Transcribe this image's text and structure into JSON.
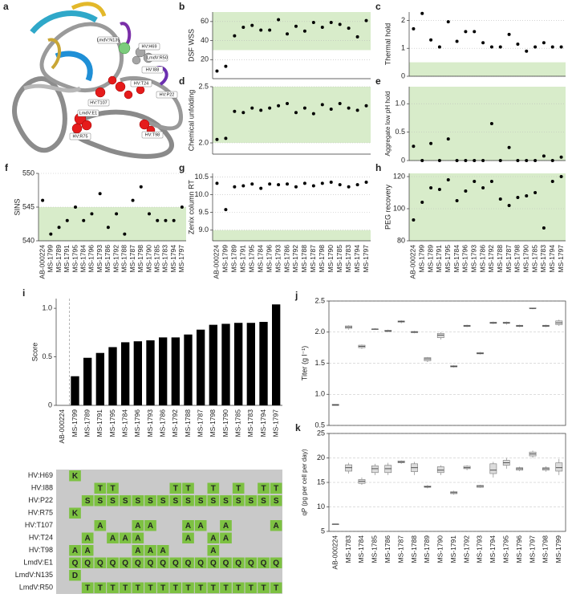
{
  "structure": {
    "panel": "a",
    "labels": [
      "LmdV:N135",
      "HV:H69",
      "LmdV:R50",
      "HV:I88",
      "HV:T107",
      "HV:T24",
      "HV:P22",
      "LmdV:E1",
      "HV:R75",
      "HV:T98"
    ]
  },
  "mutation_table": {
    "rows": [
      {
        "label": "HV:H69",
        "cells": [
          null,
          "K",
          null,
          null,
          null,
          null,
          null,
          null,
          null,
          null,
          null,
          null,
          null,
          null,
          null,
          null,
          null,
          null
        ]
      },
      {
        "label": "HV:I88",
        "cells": [
          null,
          null,
          null,
          "T",
          "T",
          null,
          null,
          null,
          null,
          "T",
          "T",
          null,
          "T",
          null,
          "T",
          null,
          "T",
          "T"
        ]
      },
      {
        "label": "HV:P22",
        "cells": [
          null,
          null,
          "S",
          "S",
          "S",
          "S",
          "S",
          "S",
          "S",
          "S",
          "S",
          "S",
          "S",
          "S",
          "S",
          "S",
          "S",
          "S"
        ]
      },
      {
        "label": "HV:R75",
        "cells": [
          null,
          "K",
          null,
          null,
          null,
          null,
          null,
          null,
          null,
          null,
          null,
          null,
          null,
          null,
          null,
          null,
          null,
          null
        ]
      },
      {
        "label": "HV:T107",
        "cells": [
          null,
          null,
          null,
          "A",
          null,
          null,
          "A",
          "A",
          null,
          null,
          "A",
          "A",
          null,
          "A",
          null,
          null,
          null,
          "A"
        ]
      },
      {
        "label": "HV:T24",
        "cells": [
          null,
          null,
          "A",
          null,
          "A",
          "A",
          "A",
          null,
          null,
          null,
          "A",
          null,
          "A",
          "A",
          null,
          null,
          null,
          null
        ]
      },
      {
        "label": "HV:T98",
        "cells": [
          null,
          "A",
          "A",
          null,
          null,
          null,
          "A",
          "A",
          "A",
          null,
          null,
          null,
          "A",
          null,
          null,
          null,
          null,
          null
        ]
      },
      {
        "label": "LmdV:E1",
        "cells": [
          null,
          "Q",
          "Q",
          "Q",
          "Q",
          "Q",
          "Q",
          "Q",
          "Q",
          "Q",
          "Q",
          "Q",
          "Q",
          "Q",
          "Q",
          "Q",
          "Q",
          "Q"
        ]
      },
      {
        "label": "LmdV:N135",
        "cells": [
          null,
          "D",
          null,
          null,
          null,
          null,
          null,
          null,
          null,
          null,
          null,
          null,
          null,
          null,
          null,
          null,
          null,
          null
        ]
      },
      {
        "label": "LmdV:R50",
        "cells": [
          null,
          null,
          "T",
          "T",
          "T",
          "T",
          "T",
          "T",
          "T",
          "T",
          "T",
          "T",
          "T",
          "T",
          "T",
          "T",
          "T",
          "T"
        ]
      }
    ]
  },
  "chart_data": [
    {
      "type": "scatter",
      "panel": "b",
      "ylabel": "DSF WSS",
      "values": [
        8,
        13,
        45,
        54,
        56,
        51,
        51,
        62,
        47,
        55,
        50,
        59,
        54,
        59,
        57,
        53,
        44,
        61
      ],
      "color": "#000000",
      "ylim": [
        0,
        70
      ],
      "yticks": [
        20,
        40,
        60
      ],
      "grid": true,
      "shade": [
        30,
        70
      ],
      "shade_color": "#d8ecca"
    },
    {
      "type": "scatter",
      "panel": "c",
      "ylabel": "Thermal hold",
      "values": [
        1.7,
        2.25,
        1.3,
        1.05,
        1.95,
        1.25,
        1.6,
        1.6,
        1.2,
        1.05,
        1.05,
        1.5,
        1.15,
        0.9,
        1.05,
        1.2,
        1.05,
        1.05
      ],
      "color": "#000000",
      "ylim": [
        0,
        2.3
      ],
      "yticks": [
        0,
        1,
        2
      ],
      "grid": true,
      "shade": [
        0,
        0.5
      ],
      "shade_color": "#d8ecca"
    },
    {
      "type": "scatter",
      "panel": "d",
      "ylabel": "Chemical unfolding",
      "values": [
        2.03,
        2.04,
        2.28,
        2.27,
        2.31,
        2.29,
        2.31,
        2.33,
        2.35,
        2.27,
        2.31,
        2.26,
        2.34,
        2.3,
        2.35,
        2.31,
        2.29,
        2.33
      ],
      "color": "#000000",
      "ylim": [
        1.9,
        2.5
      ],
      "yticks": [
        {
          "value": 2,
          "label": "2.0"
        },
        2.5
      ],
      "grid": true,
      "shade": [
        2,
        2.5
      ],
      "shade_color": "#d8ecca"
    },
    {
      "type": "scatter",
      "panel": "e",
      "ylabel": "Aggregate low pH hold",
      "values": [
        0.25,
        0,
        0.3,
        0,
        0.38,
        0,
        0,
        0,
        0,
        0.65,
        0,
        0.23,
        0,
        0,
        0,
        0.08,
        0,
        0.06
      ],
      "color": "#000000",
      "ylim": [
        0,
        1.3
      ],
      "yticks": [
        0,
        0.5,
        {
          "value": 1,
          "label": "1.0"
        }
      ],
      "grid": true,
      "shade": [
        0,
        1.3
      ],
      "shade_color": "#d8ecca"
    },
    {
      "type": "scatter",
      "panel": "f",
      "ylabel": "SINS",
      "categories": [
        "AB-000224",
        "MS-1799",
        "MS-1789",
        "MS-1791",
        "MS-1795",
        "MS-1784",
        "MS-1796",
        "MS-1793",
        "MS-1786",
        "MS-1792",
        "MS-1788",
        "MS-1787",
        "MS-1798",
        "MS-1790",
        "MS-1785",
        "MS-1783",
        "MS-1794",
        "MS-1797"
      ],
      "values": [
        546,
        541,
        542,
        543,
        545,
        543,
        544,
        547,
        542,
        544,
        541,
        546,
        548,
        544,
        543,
        543,
        543,
        545
      ],
      "color": "#000000",
      "ylim": [
        540,
        550
      ],
      "yticks": [
        540,
        545,
        550
      ],
      "grid": true,
      "shade": [
        540,
        545
      ],
      "shade_color": "#d8ecca"
    },
    {
      "type": "scatter",
      "panel": "g",
      "ylabel": "Zenix column RT",
      "categories": [
        "AB-000224",
        "MS-1799",
        "MS-1789",
        "MS-1791",
        "MS-1795",
        "MS-1784",
        "MS-1796",
        "MS-1793",
        "MS-1786",
        "MS-1792",
        "MS-1788",
        "MS-1787",
        "MS-1798",
        "MS-1790",
        "MS-1785",
        "MS-1783",
        "MS-1794",
        "MS-1797"
      ],
      "values": [
        10.32,
        9.58,
        10.22,
        10.25,
        10.3,
        10.18,
        10.3,
        10.28,
        10.3,
        10.22,
        10.32,
        10.25,
        10.32,
        10.35,
        10.28,
        10.22,
        10.28,
        10.35
      ],
      "color": "#000000",
      "ylim": [
        8.7,
        10.6
      ],
      "yticks": [
        {
          "value": 9,
          "label": "9.0"
        },
        9.5,
        {
          "value": 10,
          "label": "10.0"
        },
        10.5
      ],
      "grid": true,
      "shade": [
        8.7,
        9
      ],
      "shade_color": "#d8ecca"
    },
    {
      "type": "scatter",
      "panel": "h",
      "ylabel": "PEG recovery",
      "categories": [
        "AB-000224",
        "MS-1799",
        "MS-1789",
        "MS-1791",
        "MS-1795",
        "MS-1784",
        "MS-1796",
        "MS-1793",
        "MS-1786",
        "MS-1792",
        "MS-1788",
        "MS-1787",
        "MS-1798",
        "MS-1790",
        "MS-1785",
        "MS-1783",
        "MS-1794",
        "MS-1797"
      ],
      "values": [
        93,
        104,
        113,
        112,
        118,
        105,
        111,
        117,
        113,
        117,
        106,
        102,
        107,
        108,
        110,
        88,
        117,
        120
      ],
      "color": "#000000",
      "ylim": [
        80,
        122
      ],
      "yticks": [
        80,
        100,
        120
      ],
      "grid": true,
      "shade": [
        80,
        122
      ],
      "shade_color": "#d8ecca"
    },
    {
      "type": "bar",
      "panel": "i",
      "ylabel": "Score",
      "categories": [
        "AB-000224",
        "MS-1799",
        "MS-1789",
        "MS-1791",
        "MS-1795",
        "MS-1784",
        "MS-1796",
        "MS-1793",
        "MS-1786",
        "MS-1792",
        "MS-1788",
        "MS-1787",
        "MS-1798",
        "MS-1790",
        "MS-1785",
        "MS-1783",
        "MS-1794",
        "MS-1797"
      ],
      "values": [
        0,
        0.3,
        0.49,
        0.54,
        0.6,
        0.65,
        0.66,
        0.67,
        0.7,
        0.7,
        0.73,
        0.78,
        0.83,
        0.84,
        0.85,
        0.85,
        0.86,
        1.04
      ],
      "color": "#000000",
      "ylim": [
        0,
        1.1
      ],
      "yticks": [
        0,
        0.5,
        {
          "value": 1,
          "label": "1.0"
        }
      ],
      "grid": false
    },
    {
      "type": "box",
      "panel": "j",
      "ylabel": "Titer (g l⁻¹)",
      "values": [
        [
          0.82,
          0.82,
          0.83,
          0.84,
          0.84
        ],
        [
          2.04,
          2.06,
          2.08,
          2.1,
          2.11
        ],
        [
          1.73,
          1.75,
          1.77,
          1.79,
          1.8
        ],
        [
          2.04,
          2.05,
          2.05,
          2.05,
          2.06
        ],
        [
          2,
          2.01,
          2.02,
          2.03,
          2.04
        ],
        [
          2.14,
          2.16,
          2.17,
          2.18,
          2.19
        ],
        [
          1.98,
          1.99,
          2,
          2.01,
          2.02
        ],
        [
          1.52,
          1.54,
          1.57,
          1.59,
          1.6
        ],
        [
          1.88,
          1.91,
          1.95,
          1.98,
          2
        ],
        [
          1.43,
          1.44,
          1.45,
          1.46,
          1.47
        ],
        [
          2.08,
          2.09,
          2.1,
          2.11,
          2.12
        ],
        [
          1.64,
          1.65,
          1.66,
          1.67,
          1.68
        ],
        [
          2.13,
          2.14,
          2.15,
          2.16,
          2.17
        ],
        [
          2.12,
          2.14,
          2.15,
          2.16,
          2.17
        ],
        [
          2.08,
          2.09,
          2.1,
          2.11,
          2.12
        ],
        [
          2.37,
          2.38,
          2.38,
          2.39,
          2.39
        ],
        [
          2.08,
          2.09,
          2.1,
          2.11,
          2.12
        ],
        [
          2.1,
          2.12,
          2.15,
          2.18,
          2.2
        ]
      ],
      "color": "#dcdcdc",
      "ylim": [
        0.5,
        2.5
      ],
      "yticks": [
        0.5,
        {
          "value": 1,
          "label": "1.0"
        },
        1.5,
        {
          "value": 2,
          "label": "2.0"
        },
        2.5
      ],
      "grid": true
    },
    {
      "type": "box",
      "panel": "k",
      "ylabel": "qP (pg per cell per day)",
      "categories": [
        "AB-000224",
        "MS-1783",
        "MS-1784",
        "MS-1785",
        "MS-1786",
        "MS-1787",
        "MS-1788",
        "MS-1789",
        "MS-1790",
        "MS-1791",
        "MS-1792",
        "MS-1793",
        "MS-1794",
        "MS-1795",
        "MS-1796",
        "MS-1797",
        "MS-1798",
        "MS-1799"
      ],
      "values": [
        [
          6.5,
          6.5,
          6.5,
          6.5,
          6.5
        ],
        [
          16.8,
          17.3,
          18,
          18.6,
          19
        ],
        [
          14.5,
          14.8,
          15.2,
          15.6,
          16
        ],
        [
          16.5,
          17,
          17.8,
          18.4,
          18.8
        ],
        [
          16.5,
          17,
          17.8,
          18.5,
          19
        ],
        [
          18.8,
          19,
          19.2,
          19.4,
          19.5
        ],
        [
          16.5,
          17.2,
          18,
          18.8,
          19.2
        ],
        [
          13.8,
          14,
          14.1,
          14.3,
          14.5
        ],
        [
          16.5,
          17,
          17.5,
          18.2,
          18.5
        ],
        [
          12.5,
          12.7,
          12.9,
          13.1,
          13.3
        ],
        [
          17.5,
          17.8,
          18,
          18.3,
          18.5
        ],
        [
          13.9,
          14,
          14.2,
          14.4,
          14.5
        ],
        [
          16,
          16.8,
          17.5,
          18.8,
          19.2
        ],
        [
          17.8,
          18.5,
          19,
          19.5,
          20
        ],
        [
          17.3,
          17.5,
          17.8,
          18,
          18.2
        ],
        [
          20,
          20.4,
          20.8,
          21.2,
          21.5
        ],
        [
          17.2,
          17.5,
          17.8,
          18,
          18.3
        ],
        [
          16.5,
          17.3,
          18,
          19,
          19.8
        ]
      ],
      "color": "#dcdcdc",
      "ylim": [
        5,
        25
      ],
      "yticks": [
        5,
        10,
        15,
        20,
        25
      ],
      "grid": true
    }
  ]
}
